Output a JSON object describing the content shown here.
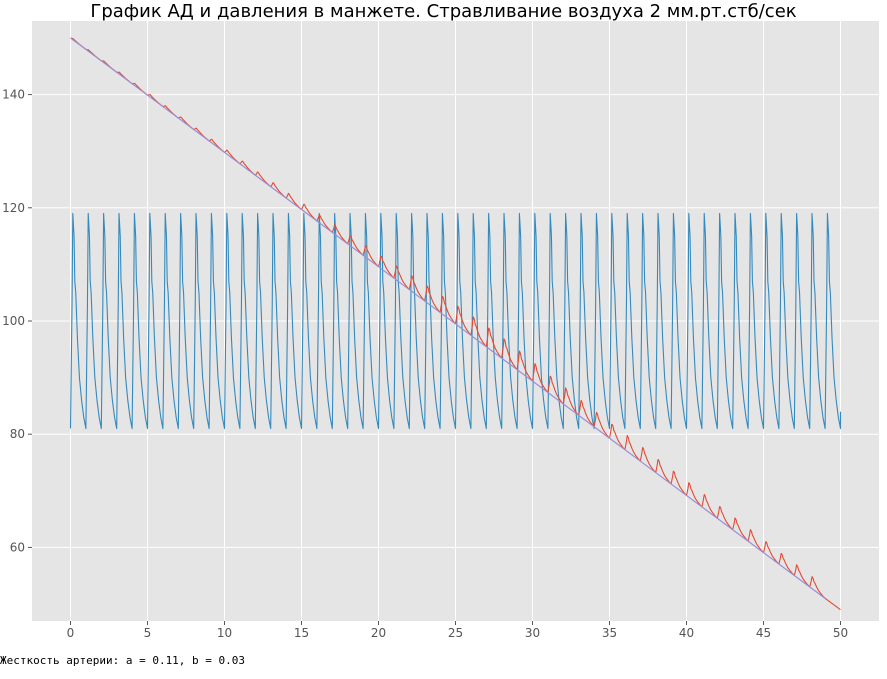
{
  "chart_data": {
    "type": "line",
    "title": "График АД и давления в манжете. Стравливание воздуха 2 мм.рт.стб/сек",
    "xlabel": "",
    "ylabel": "",
    "xlim": [
      -2.5,
      52.5
    ],
    "ylim": [
      47,
      153
    ],
    "x_ticks": [
      0,
      5,
      10,
      15,
      20,
      25,
      30,
      35,
      40,
      45,
      50
    ],
    "y_ticks": [
      60,
      80,
      100,
      120,
      140
    ],
    "grid": true,
    "style": "ggplot",
    "series": [
      {
        "key": "blood_pressure",
        "color": "#348ABD",
        "waveform": {
          "period": 1.0,
          "min": 81,
          "max": 119,
          "x_start": 0,
          "x_end": 50,
          "shape_x": [
            0,
            0.1,
            0.15,
            0.23,
            0.28,
            0.34,
            0.45,
            0.58,
            0.72,
            0.86,
            1.0
          ],
          "shape_y": [
            81,
            103,
            119,
            115,
            107,
            105,
            97,
            90,
            86,
            83,
            81
          ]
        },
        "end_value": 84
      },
      {
        "key": "cuff_pressure",
        "color": "#988ED5",
        "x": [
          0,
          49
        ],
        "y": [
          150,
          51
        ]
      },
      {
        "key": "cuff_with_oscillations",
        "color": "#E24A33",
        "baseline": {
          "x": [
            0,
            49
          ],
          "y": [
            150,
            51
          ]
        },
        "end": {
          "x": 50,
          "y": 49
        },
        "oscillation_amplitude_by_x": {
          "x": [
            0,
            9,
            13,
            16,
            18,
            20,
            23,
            26,
            28,
            33,
            40,
            49
          ],
          "y": [
            0.2,
            0.6,
            1.0,
            1.4,
            1.8,
            2.2,
            3.0,
            3.6,
            3.8,
            3.0,
            2.6,
            2.1
          ]
        }
      }
    ]
  },
  "footnote": "Жесткость артерии: a = 0.11, b = 0.03"
}
